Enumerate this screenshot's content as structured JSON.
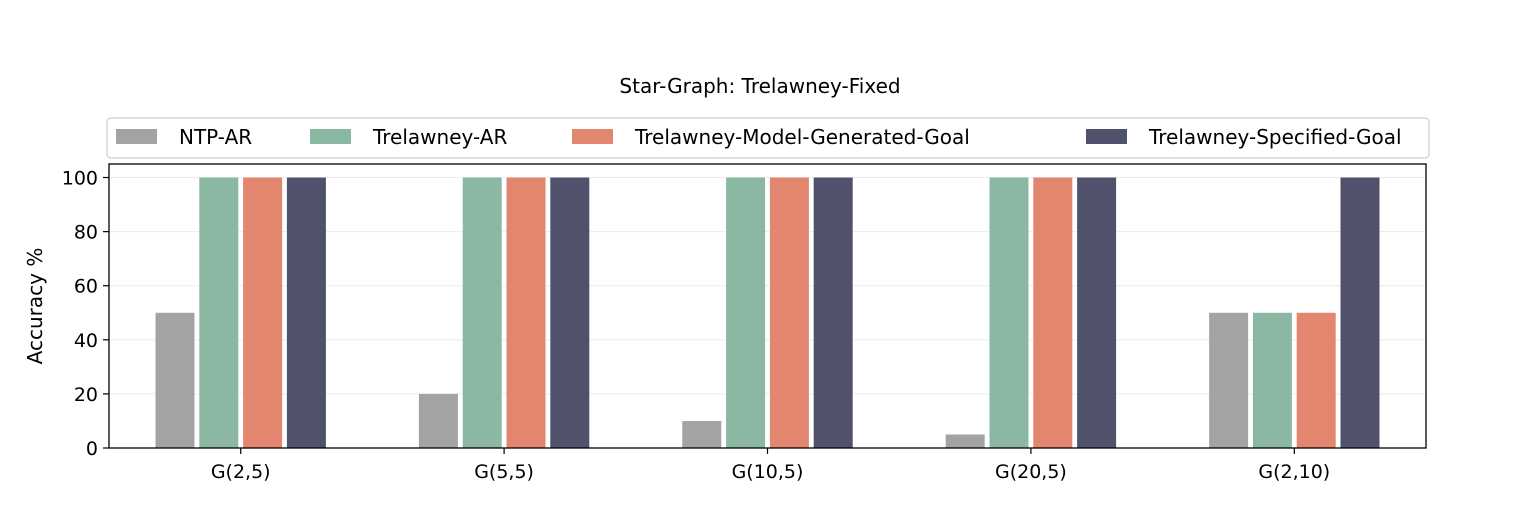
{
  "chart_data": {
    "type": "bar",
    "title": "Star-Graph: Trelawney-Fixed",
    "xlabel": "",
    "ylabel": "Accuracy %",
    "ylim": [
      0,
      105
    ],
    "yticks": [
      0,
      20,
      40,
      60,
      80,
      100
    ],
    "grid": "y",
    "legend_position": "top",
    "categories": [
      "G(2,5)",
      "G(5,5)",
      "G(10,5)",
      "G(20,5)",
      "G(2,10)"
    ],
    "series": [
      {
        "name": "NTP-AR",
        "color": "#a3a3a3",
        "values": [
          50,
          20,
          10,
          5,
          50
        ]
      },
      {
        "name": "Trelawney-AR",
        "color": "#8bb8a3",
        "values": [
          100,
          100,
          100,
          100,
          50
        ]
      },
      {
        "name": "Trelawney-Model-Generated-Goal",
        "color": "#e2866f",
        "values": [
          100,
          100,
          100,
          100,
          50
        ]
      },
      {
        "name": "Trelawney-Specified-Goal",
        "color": "#50526b",
        "values": [
          100,
          100,
          100,
          100,
          100
        ]
      }
    ]
  }
}
